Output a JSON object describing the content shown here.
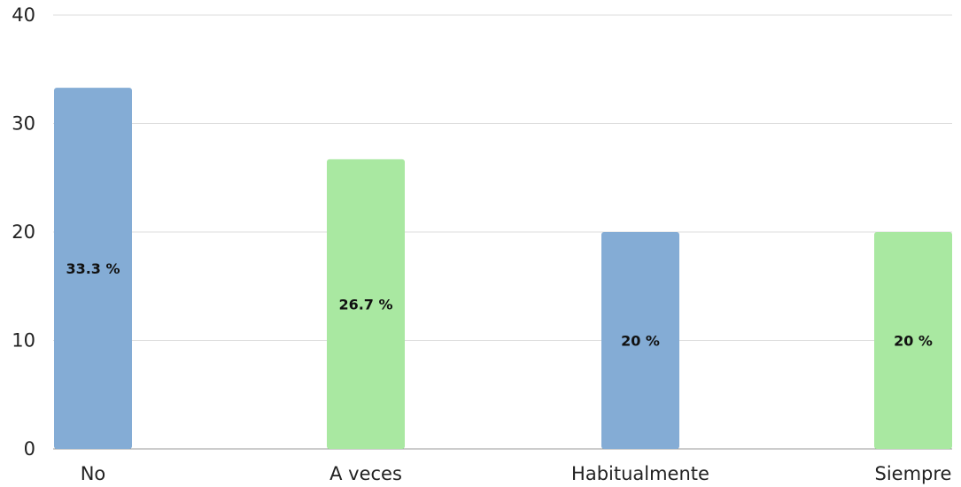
{
  "chart_data": {
    "type": "bar",
    "categories": [
      "No",
      "A veces",
      "Habitualmente",
      "Siempre"
    ],
    "values": [
      33.3,
      26.7,
      20,
      20
    ],
    "data_labels": [
      "33.3 %",
      "26.7 %",
      "20 %",
      "20 %"
    ],
    "title": "",
    "xlabel": "",
    "ylabel": "",
    "ylim": [
      0,
      40
    ],
    "yticks": [
      0,
      10,
      20,
      30,
      40
    ],
    "grid": true,
    "legend": "none",
    "colors": [
      "#84acd5",
      "#a9e8a1",
      "#84acd5",
      "#a9e8a1"
    ]
  }
}
